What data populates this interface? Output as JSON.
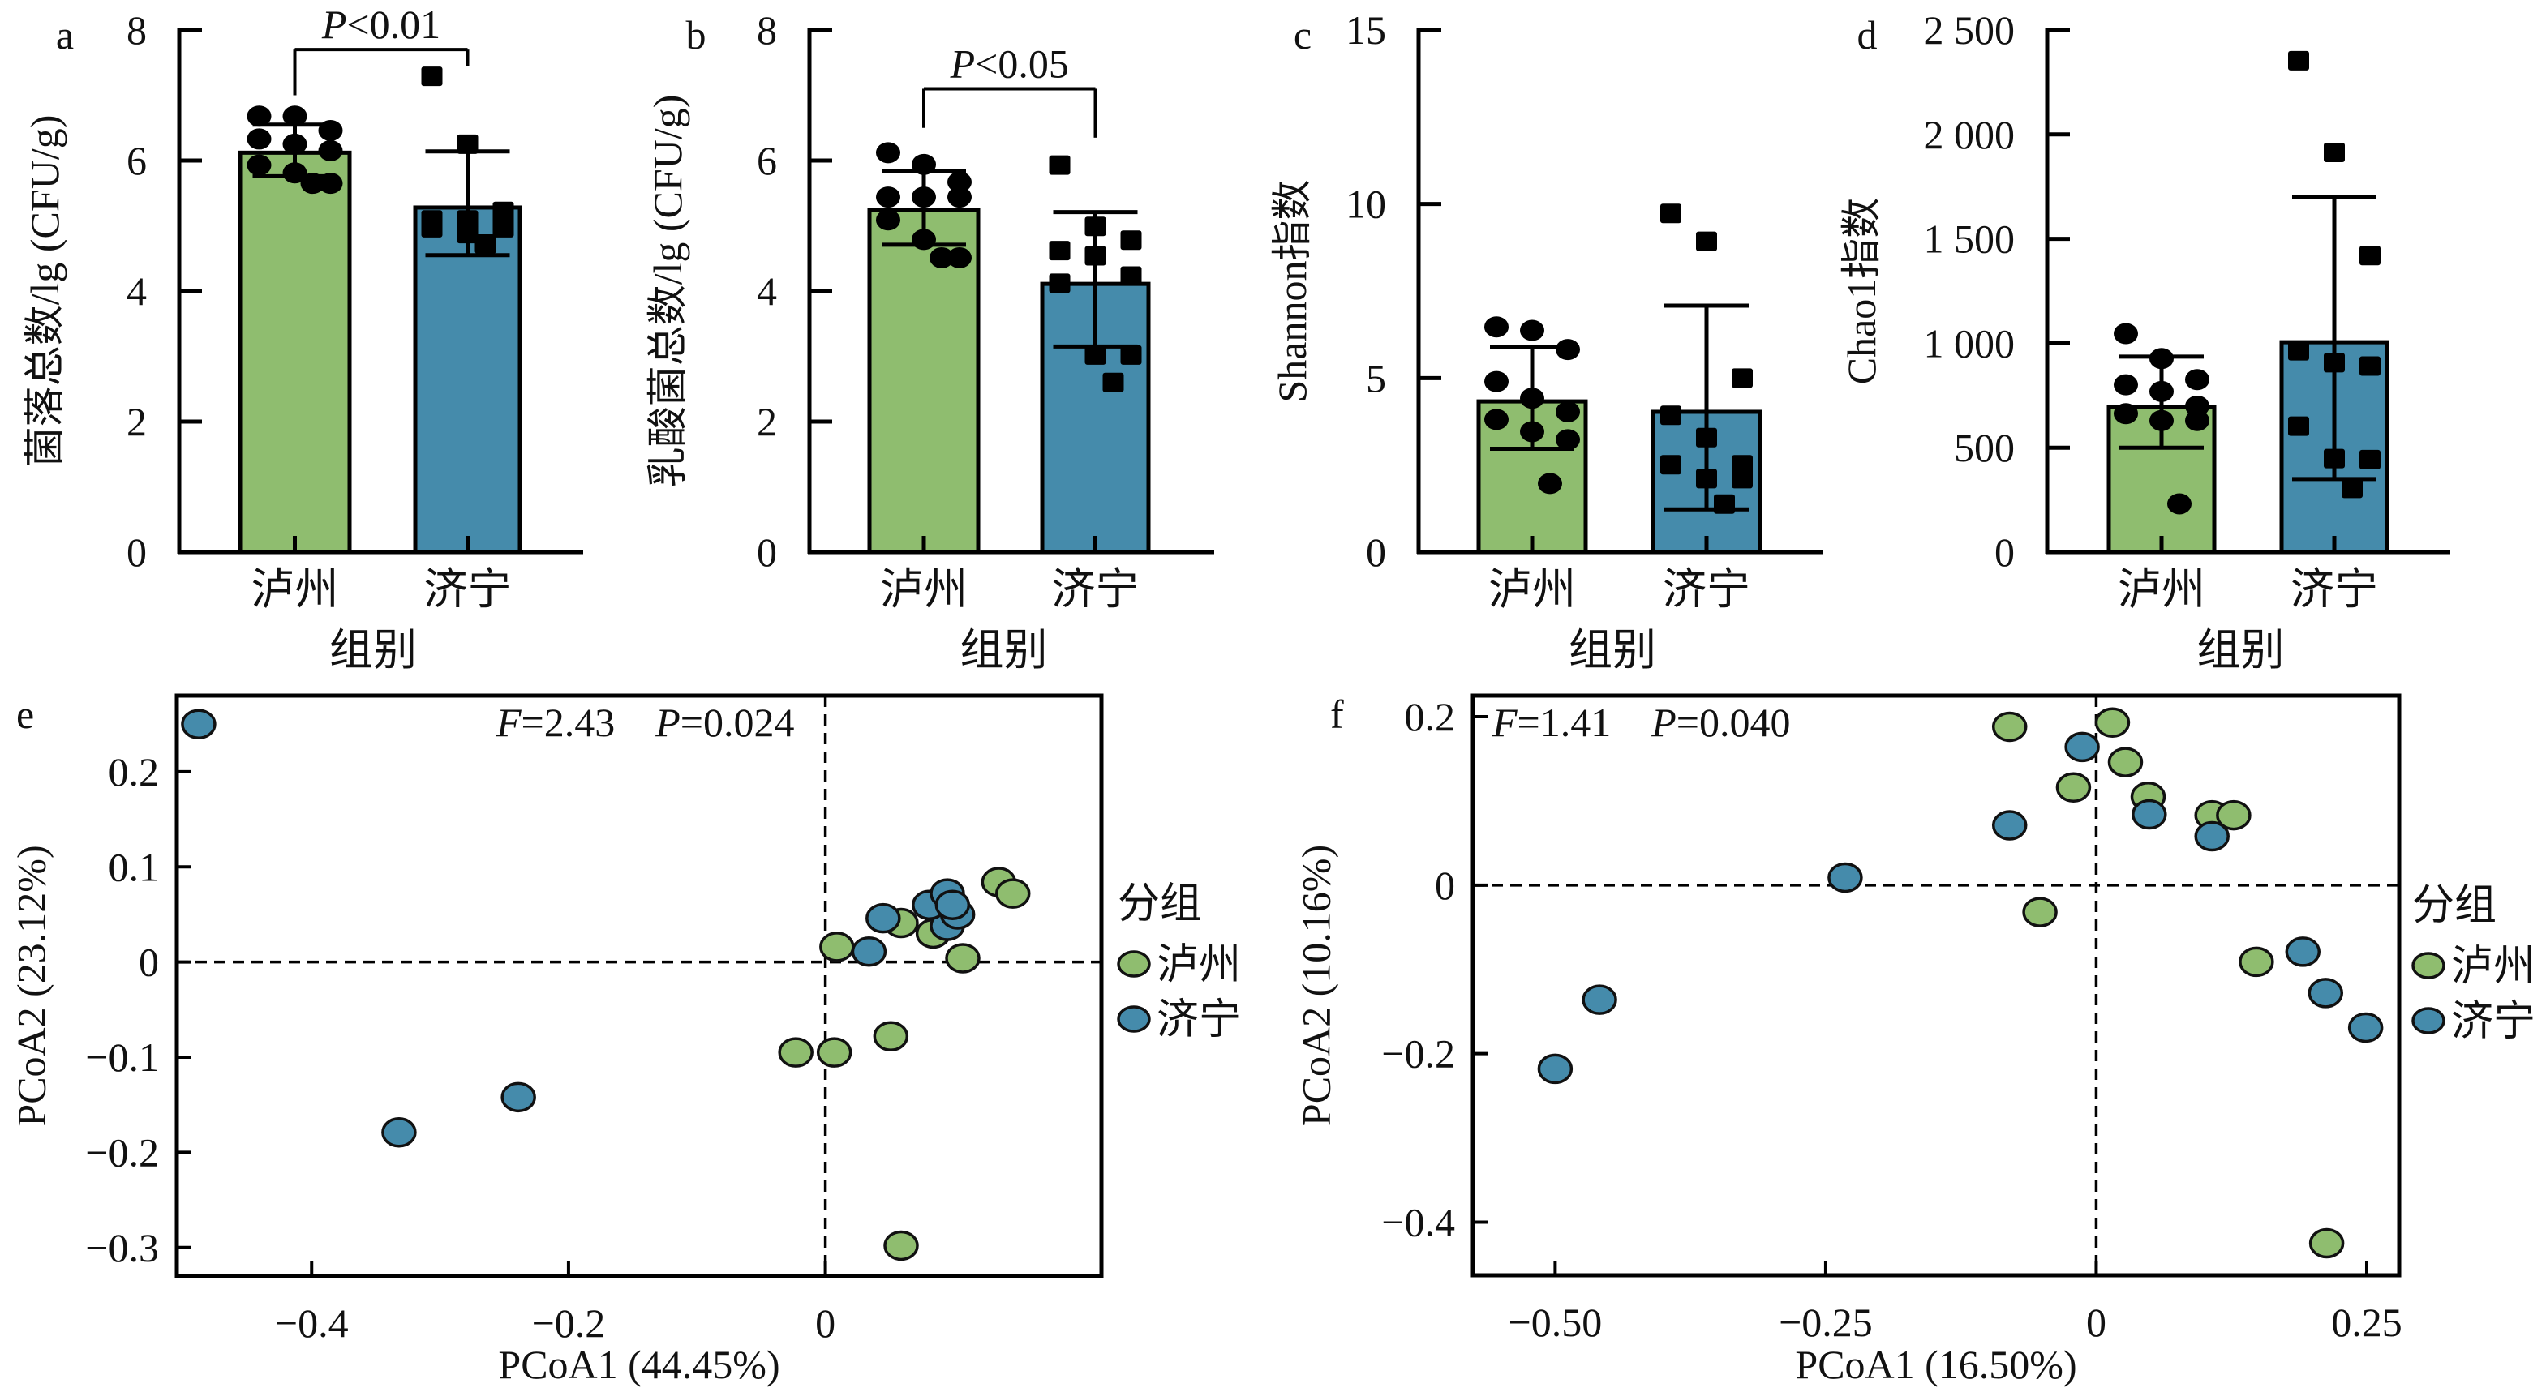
{
  "figure": {
    "colors": {
      "luzhou": "#8fbd6f",
      "jining": "#458bab",
      "marker": "#000000",
      "axis": "#000000"
    }
  },
  "chart_data": [
    {
      "panel": "a",
      "type": "bar",
      "ylabel": "菌落总数/lg (CFU/g)",
      "xlabel": "组别",
      "categories": [
        "泸州",
        "济宁"
      ],
      "ylim": [
        0,
        8
      ],
      "yticks": [
        "0",
        "2",
        "4",
        "6",
        "8"
      ],
      "ytick_values": [
        0,
        2,
        4,
        6,
        8
      ],
      "marker_shapes": [
        "circle",
        "square"
      ],
      "series": [
        {
          "name": "泸州",
          "mean": 6.12,
          "err_low": 5.76,
          "err_high": 6.55,
          "points": [
            6.68,
            6.68,
            6.46,
            6.33,
            6.25,
            6.15,
            5.93,
            5.81,
            5.65,
            5.65
          ]
        },
        {
          "name": "济宁",
          "mean": 5.28,
          "err_low": 4.55,
          "err_high": 6.14,
          "points": [
            7.29,
            6.25,
            5.22,
            5.09,
            5.09,
            4.97,
            4.97,
            4.88,
            5.12,
            4.72
          ]
        }
      ],
      "annotation": {
        "italic": "P",
        "rest": "<0.01",
        "bracket_from": 0,
        "bracket_to": 1,
        "level": 7.7,
        "drop_left": 7.0,
        "drop_right": 7.45
      }
    },
    {
      "panel": "b",
      "type": "bar",
      "ylabel": "乳酸菌总数/lg (CFU/g)",
      "xlabel": "组别",
      "categories": [
        "泸州",
        "济宁"
      ],
      "ylim": [
        0,
        8
      ],
      "yticks": [
        "0",
        "2",
        "4",
        "6",
        "8"
      ],
      "ytick_values": [
        0,
        2,
        4,
        6,
        8
      ],
      "marker_shapes": [
        "circle",
        "square"
      ],
      "series": [
        {
          "name": "泸州",
          "mean": 5.24,
          "err_low": 4.71,
          "err_high": 5.84,
          "points": [
            6.12,
            5.94,
            5.67,
            5.44,
            5.44,
            5.44,
            5.09,
            4.79,
            4.51,
            4.51
          ]
        },
        {
          "name": "济宁",
          "mean": 4.11,
          "err_low": 3.15,
          "err_high": 5.21,
          "points": [
            5.93,
            4.99,
            4.78,
            4.62,
            4.54,
            4.23,
            4.12,
            3.02,
            3.02,
            2.6
          ]
        }
      ],
      "annotation": {
        "italic": "P",
        "rest": "<0.05",
        "bracket_from": 0,
        "bracket_to": 1,
        "level": 7.1,
        "drop_left": 6.5,
        "drop_right": 6.35
      }
    },
    {
      "panel": "c",
      "type": "bar",
      "ylabel": "Shannon指数",
      "xlabel": "组别",
      "categories": [
        "泸州",
        "济宁"
      ],
      "ylim": [
        0,
        15
      ],
      "yticks": [
        "0",
        "5",
        "10",
        "15"
      ],
      "ytick_values": [
        0,
        5,
        10,
        15
      ],
      "marker_shapes": [
        "circle",
        "square"
      ],
      "series": [
        {
          "name": "泸州",
          "mean": 4.33,
          "err_low": 2.97,
          "err_high": 5.9,
          "points": [
            6.47,
            6.37,
            5.82,
            4.9,
            4.42,
            4.03,
            3.81,
            3.46,
            3.23,
            1.97
          ]
        },
        {
          "name": "济宁",
          "mean": 4.03,
          "err_low": 1.23,
          "err_high": 7.08,
          "points": [
            9.73,
            8.93,
            5.0,
            3.93,
            3.29,
            2.51,
            2.51,
            2.11,
            2.11,
            1.38
          ]
        }
      ]
    },
    {
      "panel": "d",
      "type": "bar",
      "ylabel": "Chao1指数",
      "xlabel": "组别",
      "categories": [
        "泸州",
        "济宁"
      ],
      "ylim": [
        0,
        2500
      ],
      "yticks": [
        "0",
        "500",
        "1 000",
        "1 500",
        "2 000",
        "2 500"
      ],
      "ytick_values": [
        0,
        500,
        1000,
        1500,
        2000,
        2500
      ],
      "marker_shapes": [
        "circle",
        "square"
      ],
      "series": [
        {
          "name": "泸州",
          "mean": 695,
          "err_low": 500,
          "err_high": 936,
          "points": [
            1046,
            927,
            826,
            801,
            769,
            699,
            663,
            630,
            630,
            231
          ]
        },
        {
          "name": "济宁",
          "mean": 1005,
          "err_low": 350,
          "err_high": 1702,
          "points": [
            2353,
            1914,
            1420,
            964,
            907,
            891,
            603,
            448,
            443,
            305
          ]
        }
      ]
    },
    {
      "panel": "e",
      "type": "scatter",
      "xlabel": "PCoA1 (44.45%)",
      "ylabel": "PCoA2 (23.12%)",
      "xlim": [
        -0.505,
        0.215
      ],
      "ylim": [
        -0.33,
        0.28
      ],
      "xticks": [
        "−0.4",
        "−0.2",
        "0"
      ],
      "xtick_values": [
        -0.4,
        -0.2,
        0
      ],
      "yticks": [
        "0.2",
        "0.1",
        "0",
        "−0.1",
        "−0.2",
        "−0.3"
      ],
      "ytick_values": [
        0.2,
        0.1,
        0,
        -0.1,
        -0.2,
        -0.3
      ],
      "stat": {
        "f_italic": "F",
        "f_rest": "=2.43",
        "p_italic": "P",
        "p_rest": "=0.024"
      },
      "legend": {
        "title": "分组",
        "position": "right"
      },
      "series": [
        {
          "name": "泸州",
          "x": [
            -0.023,
            0.007,
            0.051,
            0.059,
            0.009,
            0.107,
            0.059,
            0.084,
            0.135,
            0.146
          ],
          "y": [
            -0.095,
            -0.095,
            -0.078,
            -0.298,
            0.016,
            0.004,
            0.041,
            0.03,
            0.084,
            0.072
          ]
        },
        {
          "name": "济宁",
          "x": [
            -0.488,
            -0.239,
            -0.332,
            0.034,
            0.045,
            0.095,
            0.103,
            0.081,
            0.095,
            0.099
          ],
          "y": [
            0.25,
            -0.142,
            -0.179,
            0.011,
            0.046,
            0.038,
            0.05,
            0.06,
            0.072,
            0.06
          ]
        }
      ]
    },
    {
      "panel": "f",
      "type": "scatter",
      "xlabel": "PCoA1 (16.50%)",
      "ylabel": "PCoA2 (10.16%)",
      "xlim": [
        -0.576,
        0.28
      ],
      "ylim": [
        -0.463,
        0.225
      ],
      "xticks": [
        "−0.50",
        "−0.25",
        "0",
        "0.25"
      ],
      "xtick_values": [
        -0.5,
        -0.25,
        0,
        0.25
      ],
      "yticks": [
        "0.2",
        "0",
        "−0.2",
        "−0.4"
      ],
      "ytick_values": [
        0.2,
        0,
        -0.2,
        -0.4
      ],
      "stat": {
        "f_italic": "F",
        "f_rest": "=1.41",
        "p_italic": "P",
        "p_rest": "=0.040"
      },
      "legend": {
        "title": "分组",
        "position": "right"
      },
      "series": [
        {
          "name": "泸州",
          "x": [
            -0.08,
            0.015,
            0.027,
            -0.021,
            0.048,
            0.107,
            0.127,
            -0.052,
            0.148,
            0.213
          ],
          "y": [
            0.188,
            0.193,
            0.146,
            0.116,
            0.105,
            0.083,
            0.083,
            -0.032,
            -0.091,
            -0.425
          ]
        },
        {
          "name": "济宁",
          "x": [
            -0.013,
            0.049,
            0.107,
            -0.08,
            -0.232,
            0.191,
            0.212,
            0.249,
            -0.459,
            -0.5
          ],
          "y": [
            0.164,
            0.084,
            0.058,
            0.071,
            0.009,
            -0.079,
            -0.128,
            -0.169,
            -0.136,
            -0.218
          ]
        }
      ]
    }
  ]
}
